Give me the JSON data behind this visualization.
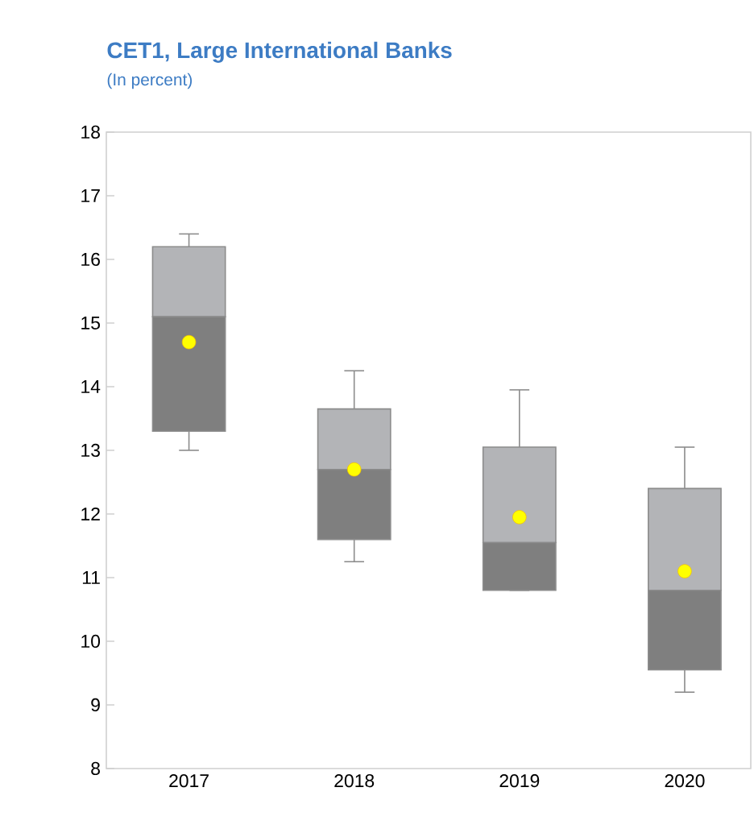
{
  "chart_data": {
    "type": "box",
    "title": "CET1, Large International Banks",
    "subtitle": "(In percent)",
    "categories": [
      "2017",
      "2018",
      "2019",
      "2020"
    ],
    "boxes": [
      {
        "low": 13.0,
        "q1": 13.3,
        "median": 15.1,
        "q3": 16.2,
        "high": 16.4,
        "mean": 14.7
      },
      {
        "low": 11.25,
        "q1": 11.6,
        "median": 12.7,
        "q3": 13.65,
        "high": 14.25,
        "mean": 12.7
      },
      {
        "low": 10.8,
        "q1": 10.8,
        "median": 11.55,
        "q3": 13.05,
        "high": 13.95,
        "mean": 11.95
      },
      {
        "low": 9.2,
        "q1": 9.55,
        "median": 10.8,
        "q3": 12.4,
        "high": 13.05,
        "mean": 11.1
      }
    ],
    "ylim": [
      8,
      18
    ],
    "yticks": [
      8,
      9,
      10,
      11,
      12,
      13,
      14,
      15,
      16,
      17,
      18
    ]
  }
}
